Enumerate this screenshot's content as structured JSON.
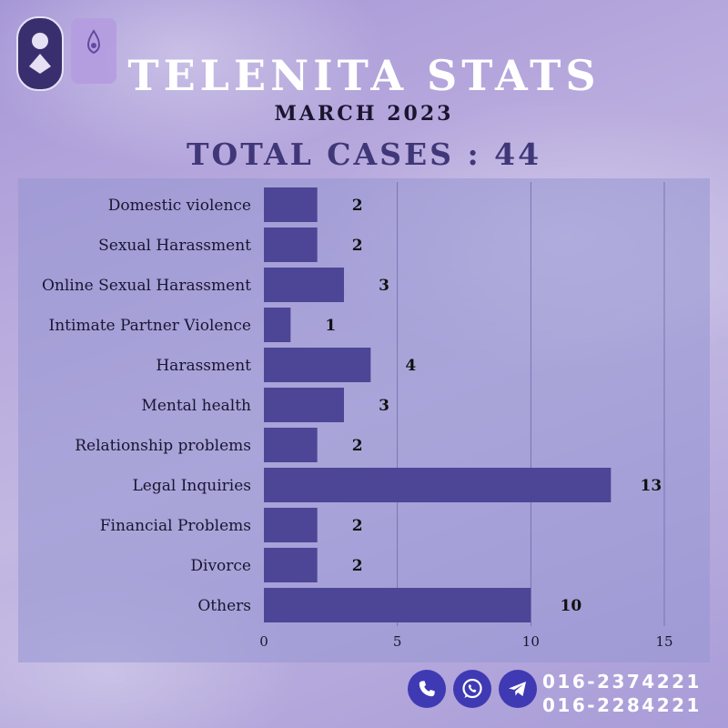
{
  "header": {
    "title": "TELENITA STATS",
    "subtitle": "MARCH 2023",
    "total": "TOTAL CASES : 44"
  },
  "logos": {
    "left": "awam-logo",
    "right": "tekuna-telenita-logo"
  },
  "colors": {
    "bar": "#4d4696",
    "title": "#ffffff",
    "total": "#3f3778",
    "icon": "#3f3ab3"
  },
  "chart_data": {
    "type": "bar",
    "orientation": "horizontal",
    "categories": [
      "Domestic violence",
      "Sexual Harassment",
      "Online Sexual Harassment",
      "Intimate Partner Violence",
      "Harassment",
      "Mental health",
      "Relationship problems",
      "Legal Inquiries",
      "Financial Problems",
      "Divorce",
      "Others"
    ],
    "values": [
      2,
      2,
      3,
      1,
      4,
      3,
      2,
      13,
      2,
      2,
      10
    ],
    "xlim": [
      0,
      15
    ],
    "xticks": [
      0,
      5,
      10,
      15
    ],
    "grid": true,
    "data_labels": true
  },
  "contact": {
    "icons": [
      "phone-icon",
      "whatsapp-icon",
      "telegram-icon"
    ],
    "phones": [
      "016-2374221",
      "016-2284221"
    ]
  }
}
